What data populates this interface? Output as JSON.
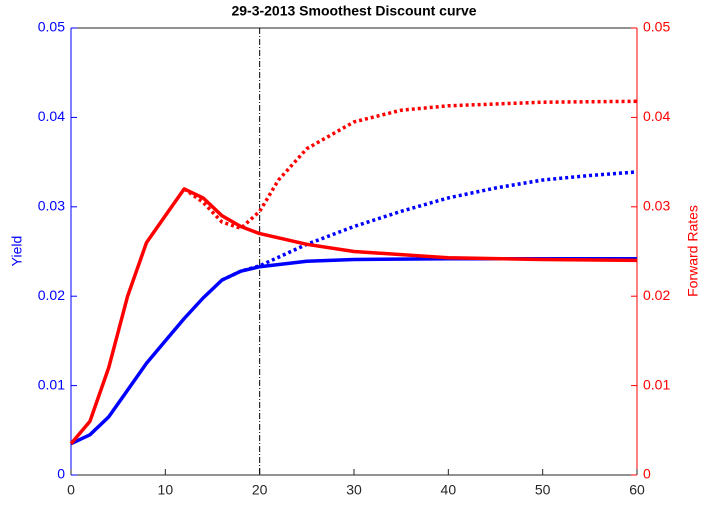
{
  "chart_data": {
    "type": "line",
    "title": "29-3-2013    Smoothest Discount curve",
    "ylabel": "Yield",
    "y2label": "Forward Rates",
    "xlim": [
      0,
      60
    ],
    "xticks": [
      0,
      10,
      20,
      30,
      40,
      50,
      60
    ],
    "ylim": [
      0,
      0.05
    ],
    "yticks": [
      0,
      0.01,
      0.02,
      0.03,
      0.04,
      0.05
    ],
    "y2lim": [
      0,
      0.05
    ],
    "y2ticks": [
      0,
      0.01,
      0.02,
      0.03,
      0.04,
      0.05
    ],
    "ycolor": "#0000ff",
    "y2color": "#ff0000",
    "vline_x": 20,
    "series": [
      {
        "color": "#0000ff",
        "style": "solid",
        "x": [
          0,
          2,
          4,
          6,
          8,
          10,
          12,
          14,
          16,
          18,
          20,
          25,
          30,
          40,
          50,
          60
        ],
        "values": [
          0.0035,
          0.0045,
          0.0065,
          0.0095,
          0.0125,
          0.015,
          0.0175,
          0.0198,
          0.0218,
          0.0228,
          0.0233,
          0.0239,
          0.0241,
          0.0242,
          0.0242,
          0.0242
        ]
      },
      {
        "color": "#0000ff",
        "style": "dotted",
        "x": [
          16,
          18,
          20,
          25,
          30,
          35,
          40,
          45,
          50,
          55,
          60
        ],
        "values": [
          0.0218,
          0.0228,
          0.0234,
          0.0258,
          0.0278,
          0.0295,
          0.031,
          0.0321,
          0.033,
          0.0335,
          0.0339
        ]
      },
      {
        "color": "#ff0000",
        "style": "solid",
        "axis": "y2",
        "x": [
          0,
          2,
          4,
          6,
          8,
          10,
          12,
          14,
          16,
          18,
          20,
          25,
          30,
          40,
          50,
          60
        ],
        "values": [
          0.0035,
          0.006,
          0.012,
          0.02,
          0.026,
          0.029,
          0.032,
          0.031,
          0.029,
          0.0278,
          0.027,
          0.0258,
          0.025,
          0.0243,
          0.0241,
          0.024
        ]
      },
      {
        "color": "#ff0000",
        "style": "dotted",
        "axis": "y2",
        "x": [
          12,
          14,
          16,
          18,
          20,
          22,
          25,
          30,
          35,
          40,
          50,
          60
        ],
        "values": [
          0.032,
          0.0305,
          0.0283,
          0.0276,
          0.0295,
          0.033,
          0.0365,
          0.0395,
          0.0408,
          0.0413,
          0.0417,
          0.0418
        ]
      }
    ]
  }
}
